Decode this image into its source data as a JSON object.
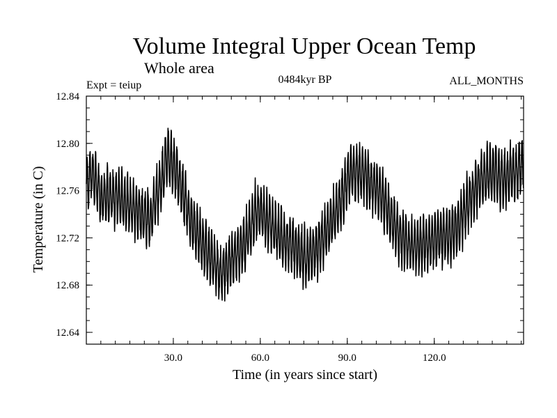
{
  "chart_data": {
    "type": "line",
    "title": "Volume Integral Upper Ocean Temp",
    "subtitle": "Whole area",
    "experiment": "Expt = teiup",
    "period": "0484kyr BP",
    "months": "ALL_MONTHS",
    "xlabel": "Time (in years since start)",
    "ylabel": "Temperature (in C)",
    "xlim": [
      0,
      150.8
    ],
    "ylim": [
      12.63,
      12.84
    ],
    "x_ticks": [
      30,
      60,
      90,
      120
    ],
    "x_tick_labels": [
      "30.0",
      "60.0",
      "90.0",
      "120.0"
    ],
    "y_ticks": [
      12.64,
      12.68,
      12.72,
      12.76,
      12.8,
      12.84
    ],
    "y_tick_labels": [
      "12.64",
      "12.68",
      "12.72",
      "12.76",
      "12.80",
      "12.84"
    ],
    "grid": false,
    "series": [
      {
        "name": "teiup",
        "color": "#000000",
        "samples_per_year": 12,
        "seasonal_amplitude": 0.022,
        "envelope_years": [
          0,
          2,
          5,
          10,
          15,
          20,
          22,
          26,
          28,
          30,
          33,
          36,
          40,
          44,
          46,
          50,
          55,
          58,
          60,
          64,
          68,
          72,
          76,
          80,
          84,
          88,
          91,
          95,
          100,
          104,
          108,
          112,
          116,
          120,
          124,
          128,
          132,
          136,
          140,
          144,
          148,
          150.8
        ],
        "envelope_mean": [
          12.765,
          12.775,
          12.755,
          12.755,
          12.748,
          12.738,
          12.735,
          12.77,
          12.79,
          12.782,
          12.76,
          12.735,
          12.715,
          12.7,
          12.69,
          12.7,
          12.718,
          12.74,
          12.742,
          12.73,
          12.718,
          12.712,
          12.703,
          12.712,
          12.73,
          12.752,
          12.775,
          12.775,
          12.762,
          12.745,
          12.72,
          12.712,
          12.715,
          12.718,
          12.722,
          12.728,
          12.75,
          12.77,
          12.775,
          12.77,
          12.775,
          12.782
        ]
      }
    ]
  }
}
